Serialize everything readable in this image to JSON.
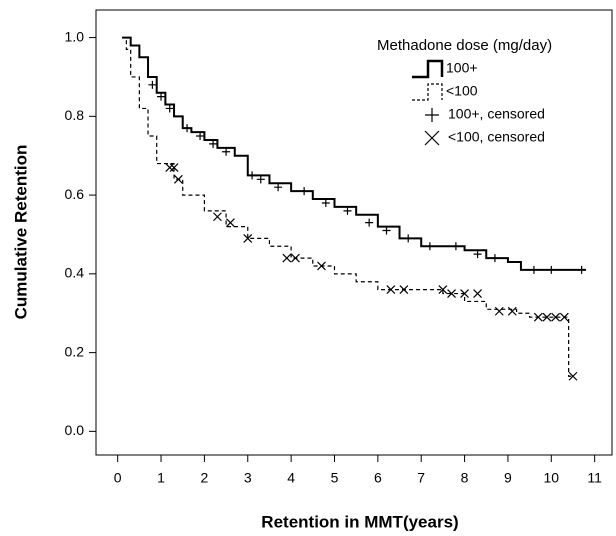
{
  "chart_data": {
    "type": "line",
    "x_label": "Retention in MMT(years)",
    "y_label": "Cumulative Retention",
    "legend_title": "Methadone dose (mg/day)",
    "legend": "upper right",
    "xlim": [
      -0.5,
      11.4
    ],
    "ylim": [
      -0.06,
      1.07
    ],
    "xticks": [
      0,
      1,
      2,
      3,
      4,
      5,
      6,
      7,
      8,
      9,
      10,
      11
    ],
    "yticks": [
      {
        "value": 0,
        "label": "0.0"
      },
      0.2,
      0.4,
      0.6,
      0.8,
      {
        "value": 1,
        "label": "1.0"
      }
    ],
    "series": [
      {
        "name": "100+",
        "style": "solid",
        "color": "#000000",
        "x": [
          0.1,
          0.2,
          0.3,
          0.5,
          0.7,
          0.9,
          1.1,
          1.3,
          1.5,
          1.7,
          2.0,
          2.3,
          2.7,
          3.0,
          3.5,
          4.0,
          4.5,
          5.0,
          5.5,
          6.0,
          6.5,
          7.0,
          8.0,
          8.5,
          9.0,
          9.3,
          10.8
        ],
        "values": [
          1.0,
          1.0,
          0.98,
          0.95,
          0.9,
          0.86,
          0.83,
          0.8,
          0.77,
          0.76,
          0.74,
          0.72,
          0.7,
          0.65,
          0.63,
          0.61,
          0.59,
          0.57,
          0.55,
          0.52,
          0.49,
          0.47,
          0.46,
          0.44,
          0.43,
          0.41,
          0.41
        ]
      },
      {
        "name": "<100",
        "style": "dashed",
        "color": "#000000",
        "x": [
          0.1,
          0.2,
          0.3,
          0.5,
          0.7,
          0.9,
          1.3,
          1.5,
          2.0,
          2.5,
          3.0,
          3.5,
          4.0,
          4.5,
          5.0,
          5.5,
          6.0,
          7.5,
          8.0,
          8.5,
          9.2,
          9.5,
          10.4,
          10.5
        ],
        "values": [
          1.0,
          0.97,
          0.9,
          0.82,
          0.75,
          0.68,
          0.64,
          0.6,
          0.56,
          0.52,
          0.49,
          0.47,
          0.44,
          0.42,
          0.4,
          0.38,
          0.36,
          0.35,
          0.33,
          0.31,
          0.3,
          0.29,
          0.14,
          0.14
        ]
      },
      {
        "name": "100+, censored",
        "marker": "plus",
        "color": "#000000",
        "x": [
          0.8,
          1.0,
          1.2,
          1.6,
          1.9,
          2.2,
          2.5,
          3.1,
          3.3,
          3.7,
          4.3,
          4.8,
          5.3,
          5.8,
          6.2,
          6.7,
          7.2,
          7.8,
          8.3,
          8.7,
          9.6,
          10.0,
          10.7
        ],
        "values": [
          0.88,
          0.85,
          0.82,
          0.77,
          0.75,
          0.73,
          0.71,
          0.65,
          0.64,
          0.62,
          0.61,
          0.58,
          0.56,
          0.53,
          0.51,
          0.49,
          0.47,
          0.47,
          0.45,
          0.44,
          0.41,
          0.41,
          0.41
        ]
      },
      {
        "name": "<100, censored",
        "marker": "cross",
        "color": "#000000",
        "x": [
          1.2,
          1.3,
          1.4,
          2.3,
          2.6,
          3.0,
          3.9,
          4.1,
          4.7,
          6.3,
          6.6,
          7.5,
          7.7,
          8.0,
          8.3,
          8.8,
          9.1,
          9.7,
          9.9,
          10.1,
          10.3,
          10.5
        ],
        "values": [
          0.67,
          0.67,
          0.64,
          0.545,
          0.53,
          0.49,
          0.44,
          0.44,
          0.42,
          0.36,
          0.36,
          0.36,
          0.35,
          0.35,
          0.35,
          0.305,
          0.305,
          0.29,
          0.29,
          0.29,
          0.29,
          0.14
        ]
      }
    ]
  }
}
